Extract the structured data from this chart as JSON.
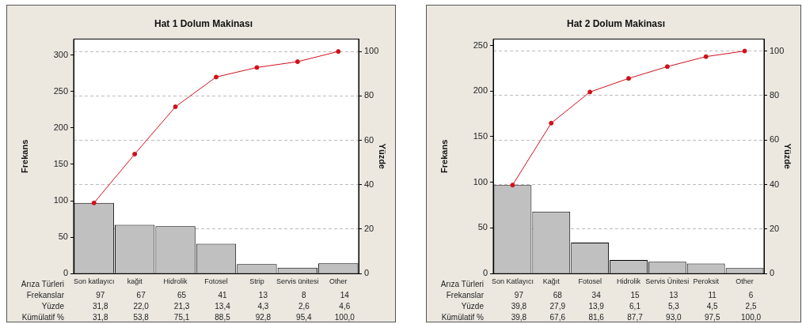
{
  "chart_data": [
    {
      "type": "bar",
      "title": "Hat 1 Dolum Makinası",
      "xlabel": "Arıza Türleri",
      "ylabel": "Frekans",
      "y2label": "Yüzde",
      "categories": [
        "Son katlayıcı",
        "kağit",
        "Hidrolik",
        "Fotosel",
        "Strip",
        "Servis ünitesi",
        "Other"
      ],
      "series": [
        {
          "name": "Frekanslar",
          "color": "#c0c0c0",
          "values": [
            97,
            67,
            65,
            41,
            13,
            8,
            14
          ],
          "value_labels": [
            "97",
            "67",
            "65",
            "41",
            "13",
            "8",
            "14"
          ]
        },
        {
          "type": "line",
          "axis": "y2",
          "color": "#d0101a",
          "values": [
            31.8,
            53.8,
            75.1,
            88.5,
            92.8,
            95.4,
            100.0
          ],
          "value_labels": [
            "31,8",
            "53,8",
            "75,1",
            "88,5",
            "92,8",
            "95,4",
            "100,0"
          ]
        }
      ],
      "annotations": [
        "Yüzde",
        "31,8",
        "22,0",
        "21,3",
        "13,4",
        "4,3",
        "2,6",
        "4,6",
        "Kümülatif %"
      ],
      "ylim": [
        0,
        322
      ],
      "yticks": [
        0,
        50,
        100,
        150,
        200,
        250,
        300
      ],
      "y2lim": [
        0,
        105.6
      ],
      "y2ticks": [
        0,
        20,
        40,
        60,
        80,
        100
      ],
      "grid": "y",
      "marker": "circle"
    },
    {
      "type": "bar",
      "title": "Hat 2 Dolum Makinası",
      "xlabel": "Arıza Türleri",
      "ylabel": "Frekans",
      "y2label": "Yüzde",
      "categories": [
        "Son Katlayıcı",
        "Kağıt",
        "Fotosel",
        "Hidrolik",
        "Servis Ünitesi",
        "Peroksit",
        "Other"
      ],
      "series": [
        {
          "name": "Frekanslar",
          "color": "#c0c0c0",
          "values": [
            97,
            68,
            34,
            15,
            13,
            11,
            6
          ],
          "value_labels": [
            "97",
            "68",
            "34",
            "15",
            "13",
            "11",
            "6"
          ]
        },
        {
          "type": "line",
          "axis": "y2",
          "color": "#d0101a",
          "values": [
            39.8,
            67.6,
            81.6,
            87.7,
            93.0,
            97.5,
            100.0
          ],
          "value_labels": [
            "39,8",
            "67,6",
            "81,6",
            "87,7",
            "93,0",
            "97,5",
            "100,0"
          ]
        }
      ],
      "annotations": [
        "Yüzde",
        "39,8",
        "27,9",
        "13,9",
        "6,1",
        "5,3",
        "4,5",
        "2,5",
        "Kümülatif %"
      ],
      "ylim": [
        0,
        257
      ],
      "yticks": [
        0,
        50,
        100,
        150,
        200,
        250
      ],
      "y2lim": [
        0,
        105.4
      ],
      "y2ticks": [
        0,
        20,
        40,
        60,
        80,
        100
      ],
      "grid": "y",
      "marker": "circle"
    }
  ]
}
